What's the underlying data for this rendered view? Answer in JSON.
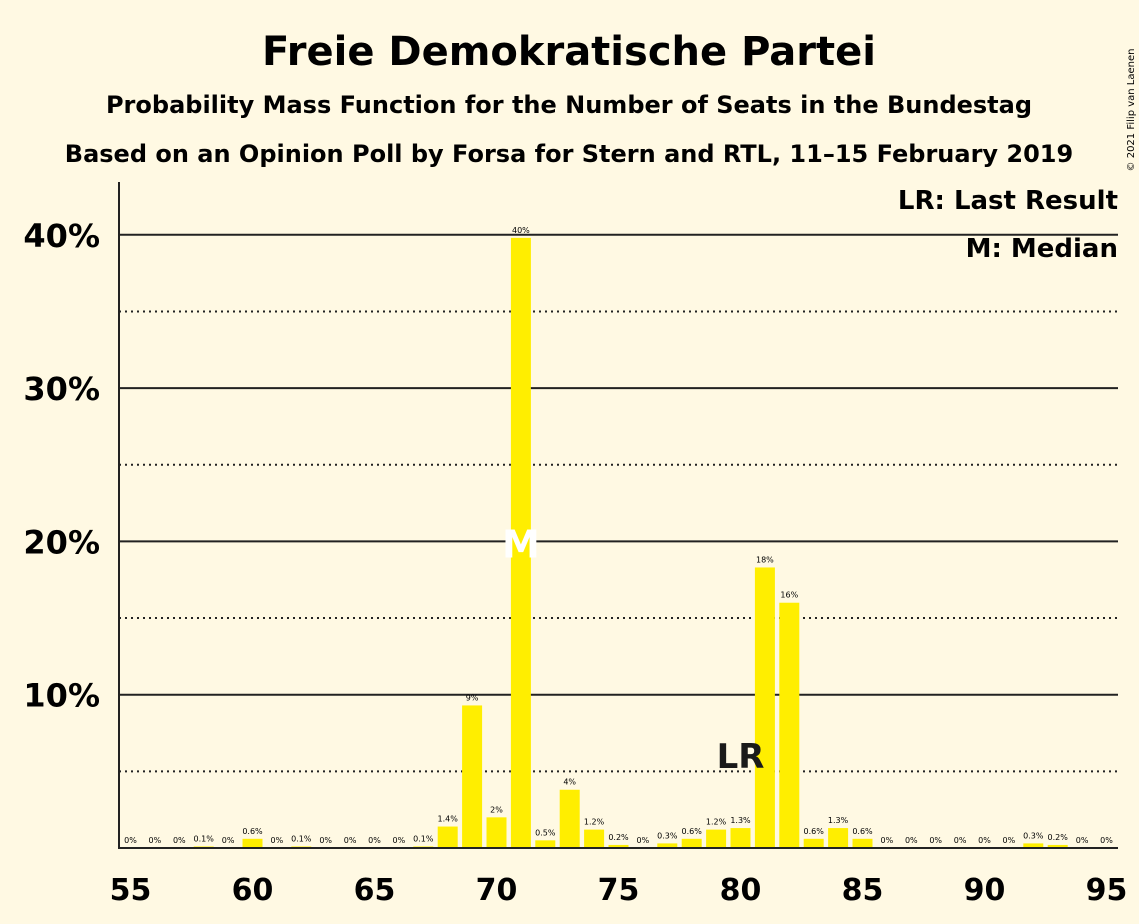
{
  "chart_data": {
    "type": "bar",
    "title": "Freie Demokratische Partei",
    "subtitle": "Probability Mass Function for the Number of Seats in the Bundestag",
    "subtitle2": "Based on an Opinion Poll by Forsa for Stern and RTL, 11–15 February 2019",
    "copyright": "© 2021 Filip van Laenen",
    "legend": {
      "last_result": "LR: Last Result",
      "median": "M: Median",
      "placement": "top-right"
    },
    "x": [
      55,
      56,
      57,
      58,
      59,
      60,
      61,
      62,
      63,
      64,
      65,
      66,
      67,
      68,
      69,
      70,
      71,
      72,
      73,
      74,
      75,
      76,
      77,
      78,
      79,
      80,
      81,
      82,
      83,
      84,
      85,
      86,
      87,
      88,
      89,
      90,
      91,
      92,
      93,
      94,
      95
    ],
    "values": [
      0,
      0,
      0,
      0.1,
      0,
      0.6,
      0,
      0.1,
      0,
      0,
      0,
      0,
      0.1,
      1.4,
      9.3,
      2,
      39.8,
      0.5,
      3.8,
      1.2,
      0.2,
      0,
      0.3,
      0.6,
      1.2,
      1.3,
      18.3,
      16.0,
      0.6,
      1.3,
      0.6,
      0,
      0,
      0,
      0,
      0,
      0,
      0.3,
      0.2,
      0,
      0
    ],
    "labels": [
      "0%",
      "0%",
      "0%",
      "0.1%",
      "0%",
      "0.6%",
      "0%",
      "0.1%",
      "0%",
      "0%",
      "0%",
      "0%",
      "0.1%",
      "1.4%",
      "9%",
      "2%",
      "40%",
      "0.5%",
      "4%",
      "1.2%",
      "0.2%",
      "0%",
      "0.3%",
      "0.6%",
      "1.2%",
      "1.3%",
      "18%",
      "16%",
      "0.6%",
      "1.3%",
      "0.6%",
      "0%",
      "0%",
      "0%",
      "0%",
      "0%",
      "0%",
      "0.3%",
      "0.2%",
      "0%",
      "0%"
    ],
    "median_seat": 71,
    "median_marker": "M",
    "last_result_seat": 80,
    "last_result_marker": "LR",
    "xticks": [
      55,
      60,
      65,
      70,
      75,
      80,
      85,
      90,
      95
    ],
    "yticks": [
      10,
      20,
      30,
      40
    ],
    "ytick_labels": [
      "10%",
      "20%",
      "30%",
      "40%"
    ],
    "dotted_gridlines": [
      5,
      15,
      25,
      35
    ],
    "ylim": [
      0,
      42
    ],
    "bar_color": "#FFEE00",
    "grid": true
  }
}
